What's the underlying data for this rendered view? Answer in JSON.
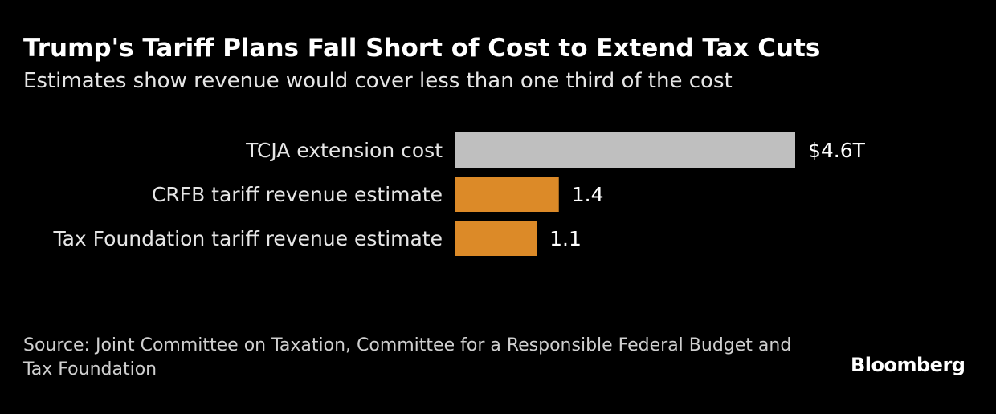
{
  "chart_data": {
    "type": "bar",
    "orientation": "horizontal",
    "title": "Trump's Tariff Plans Fall Short of Cost to Extend Tax Cuts",
    "subtitle": "Estimates show revenue would cover less than one third of the cost",
    "categories": [
      "TCJA extension cost",
      "CRFB tariff revenue estimate",
      "Tax Foundation tariff revenue estimate"
    ],
    "values": [
      4.6,
      1.4,
      1.1
    ],
    "value_labels": [
      "$4.6T",
      "1.4",
      "1.1"
    ],
    "colors": [
      "#bfbfbf",
      "#dc8a28",
      "#dc8a28"
    ],
    "unit": "trillion USD",
    "xlim": [
      0,
      4.6
    ],
    "grid": false
  },
  "footer": {
    "source": "Source: Joint Committee on Taxation, Committee for a Responsible Federal Budget and Tax Foundation",
    "logo": "Bloomberg"
  }
}
